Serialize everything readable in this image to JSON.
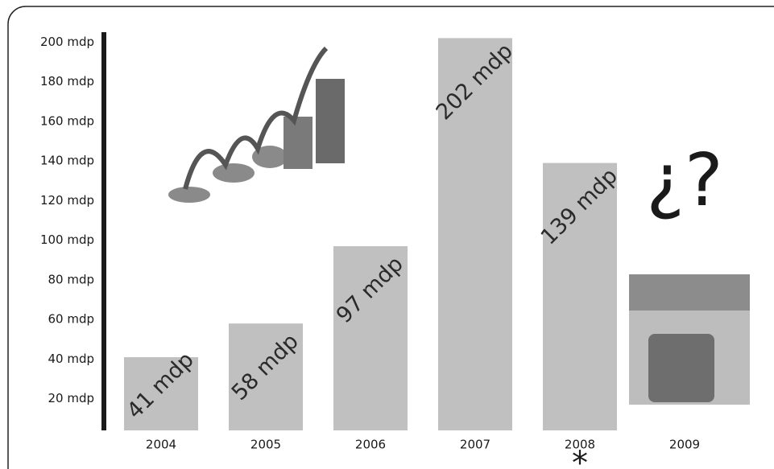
{
  "chart_data": {
    "type": "bar",
    "categories": [
      "2004",
      "2005",
      "2006",
      "2007",
      "2008",
      "2009"
    ],
    "values": [
      41,
      58,
      97,
      202,
      139,
      null
    ],
    "value_labels": [
      "41 mdp",
      "58 mdp",
      "97 mdp",
      "202 mdp",
      "139 mdp",
      null
    ],
    "color": "#c0c0c0",
    "ylim": [
      0,
      205
    ],
    "yticks": [
      {
        "value": 20,
        "label": "20 mdp"
      },
      {
        "value": 40,
        "label": "40 mdp"
      },
      {
        "value": 60,
        "label": "60 mdp"
      },
      {
        "value": 80,
        "label": "80 mdp"
      },
      {
        "value": 100,
        "label": "100 mdp"
      },
      {
        "value": 120,
        "label": "120 mdp"
      },
      {
        "value": 140,
        "label": "140 mdp"
      },
      {
        "value": 160,
        "label": "160 mdp"
      },
      {
        "value": 180,
        "label": "180 mdp"
      },
      {
        "value": 200,
        "label": "200 mdp"
      }
    ],
    "grid": false,
    "annotations": [
      "¿?",
      "*"
    ]
  }
}
